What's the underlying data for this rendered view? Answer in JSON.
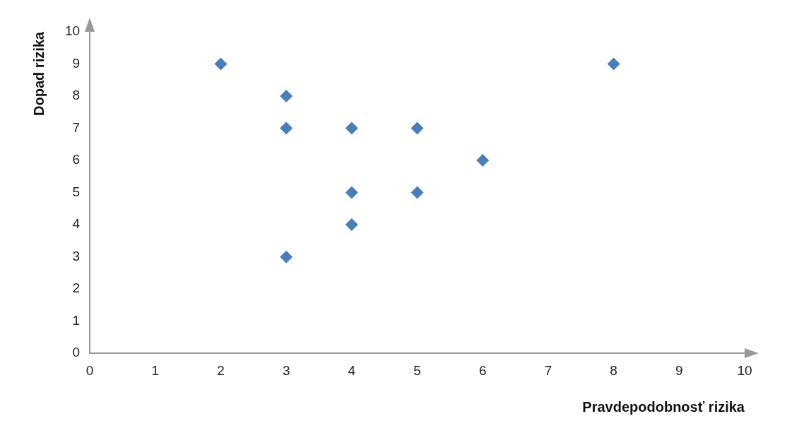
{
  "chart_data": {
    "type": "scatter",
    "xlabel": "Pravdepodobnosť rizika",
    "ylabel": "Dopad rizika",
    "x": [
      2,
      3,
      3,
      3,
      4,
      4,
      4,
      5,
      5,
      6,
      8
    ],
    "series": [
      {
        "color": "#4a7ebb",
        "values": [
          9,
          8,
          7,
          3,
          7,
          5,
          4,
          7,
          5,
          6,
          9
        ]
      }
    ],
    "xlim": [
      0,
      10
    ],
    "xticks": [
      0,
      1,
      2,
      3,
      4,
      5,
      6,
      7,
      8,
      9,
      10
    ],
    "ylim": [
      0,
      10
    ],
    "yticks": [
      0,
      1,
      2,
      3,
      4,
      5,
      6,
      7,
      8,
      9,
      10
    ],
    "grid": false,
    "legend": false,
    "marker": "diamond"
  }
}
